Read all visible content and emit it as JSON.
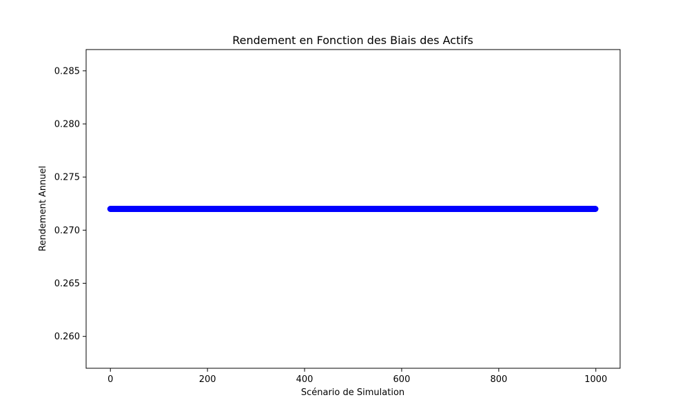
{
  "chart_data": {
    "type": "scatter",
    "title": "Rendement en Fonction des Biais des Actifs",
    "xlabel": "Scénario de Simulation",
    "ylabel": "Rendement Annuel",
    "xlim": [
      -50,
      1050
    ],
    "ylim": [
      0.257,
      0.287
    ],
    "x_ticks": [
      0,
      200,
      400,
      600,
      800,
      1000
    ],
    "y_ticks": [
      0.26,
      0.265,
      0.27,
      0.275,
      0.28,
      0.285
    ],
    "x_tick_labels": [
      "0",
      "200",
      "400",
      "600",
      "800",
      "1000"
    ],
    "y_tick_labels": [
      "0.260",
      "0.265",
      "0.270",
      "0.275",
      "0.280",
      "0.285"
    ],
    "grid": false,
    "legend": "none",
    "series": [
      {
        "color": "#0000ff",
        "marker": "circle",
        "x_start": 0,
        "x_end": 999,
        "x_step": 1,
        "y_constant": 0.272
      }
    ]
  }
}
